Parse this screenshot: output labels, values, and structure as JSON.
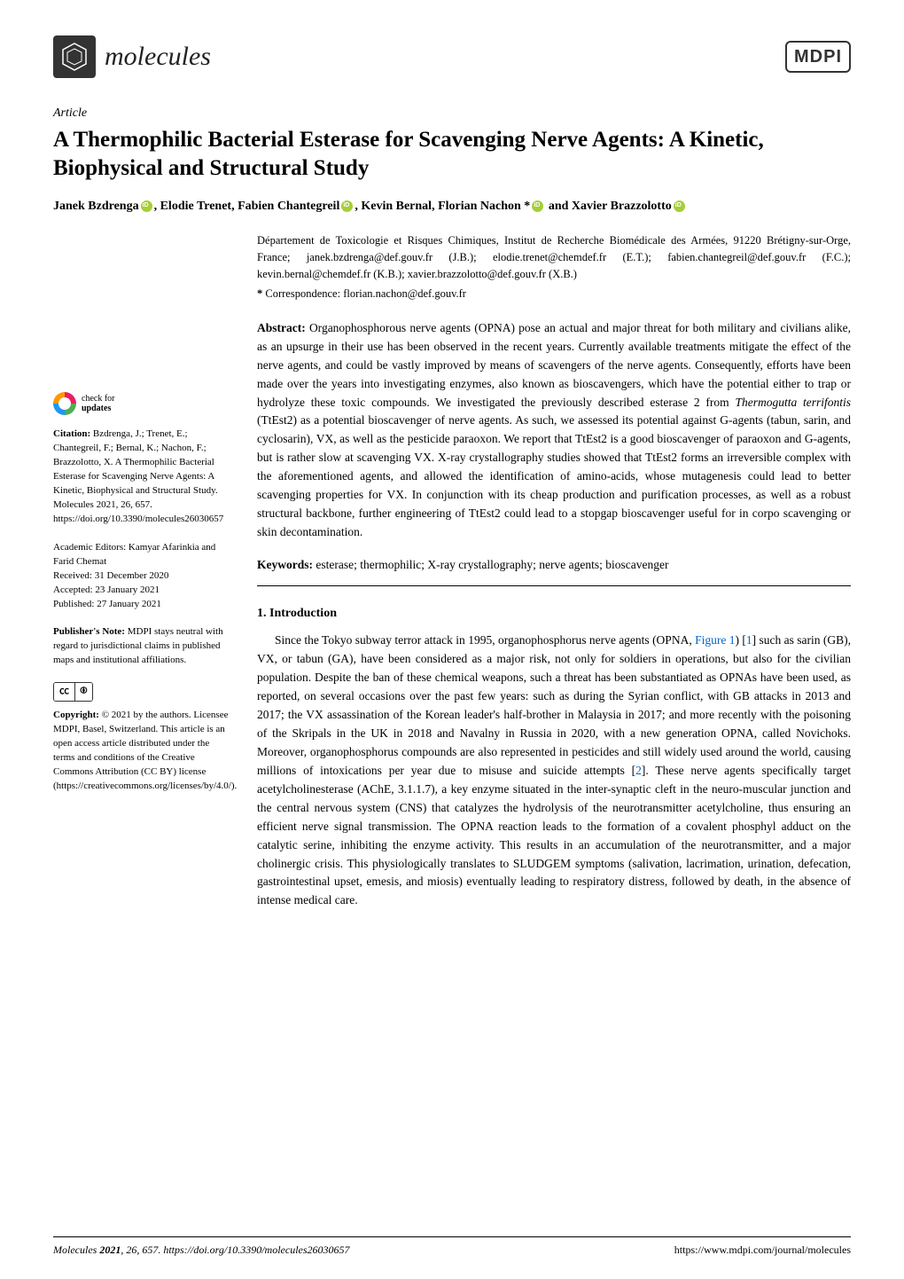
{
  "journal": {
    "name": "molecules",
    "publisher_logo": "MDPI"
  },
  "article_type": "Article",
  "title": "A Thermophilic Bacterial Esterase for Scavenging Nerve Agents: A Kinetic, Biophysical and Structural Study",
  "authors_html": "Janek Bzdrenga <ORCID>, Elodie Trenet, Fabien Chantegreil <ORCID>, Kevin Bernal, Florian Nachon *<ORCID> and Xavier Brazzolotto <ORCID>",
  "authors": [
    {
      "name": "Janek Bzdrenga",
      "orcid": true
    },
    {
      "name": "Elodie Trenet",
      "orcid": false
    },
    {
      "name": "Fabien Chantegreil",
      "orcid": true
    },
    {
      "name": "Kevin Bernal",
      "orcid": false
    },
    {
      "name": "Florian Nachon *",
      "orcid": true
    },
    {
      "name": "Xavier Brazzolotto",
      "orcid": true
    }
  ],
  "author_joiner_last": " and ",
  "affiliation": "Département de Toxicologie et Risques Chimiques, Institut de Recherche Biomédicale des Armées, 91220 Brétigny-sur-Orge, France; janek.bzdrenga@def.gouv.fr (J.B.); elodie.trenet@chemdef.fr (E.T.); fabien.chantegreil@def.gouv.fr (F.C.); kevin.bernal@chemdef.fr (K.B.); xavier.brazzolotto@def.gouv.fr (X.B.)",
  "correspondence_label": "*",
  "correspondence": "Correspondence: florian.nachon@def.gouv.fr",
  "abstract_label": "Abstract:",
  "abstract": "Organophosphorous nerve agents (OPNA) pose an actual and major threat for both military and civilians alike, as an upsurge in their use has been observed in the recent years. Currently available treatments mitigate the effect of the nerve agents, and could be vastly improved by means of scavengers of the nerve agents. Consequently, efforts have been made over the years into investigating enzymes, also known as bioscavengers, which have the potential either to trap or hydrolyze these toxic compounds. We investigated the previously described esterase 2 from Thermogutta terrifontis (TtEst2) as a potential bioscavenger of nerve agents. As such, we assessed its potential against G-agents (tabun, sarin, and cyclosarin), VX, as well as the pesticide paraoxon. We report that TtEst2 is a good bioscavenger of paraoxon and G-agents, but is rather slow at scavenging VX. X-ray crystallography studies showed that TtEst2 forms an irreversible complex with the aforementioned agents, and allowed the identification of amino-acids, whose mutagenesis could lead to better scavenging properties for VX. In conjunction with its cheap production and purification processes, as well as a robust structural backbone, further engineering of TtEst2 could lead to a stopgap bioscavenger useful for in corpo scavenging or skin decontamination.",
  "keywords_label": "Keywords:",
  "keywords": "esterase; thermophilic; X-ray crystallography; nerve agents; bioscavenger",
  "section1_heading": "1. Introduction",
  "intro_para": "Since the Tokyo subway terror attack in 1995, organophosphorus nerve agents (OPNA, Figure 1) [1] such as sarin (GB), VX, or tabun (GA), have been considered as a major risk, not only for soldiers in operations, but also for the civilian population. Despite the ban of these chemical weapons, such a threat has been substantiated as OPNAs have been used, as reported, on several occasions over the past few years: such as during the Syrian conflict, with GB attacks in 2013 and 2017; the VX assassination of the Korean leader's half-brother in Malaysia in 2017; and more recently with the poisoning of the Skripals in the UK in 2018 and Navalny in Russia in 2020, with a new generation OPNA, called Novichoks. Moreover, organophosphorus compounds are also represented in pesticides and still widely used around the world, causing millions of intoxications per year due to misuse and suicide attempts [2]. These nerve agents specifically target acetylcholinesterase (AChE, 3.1.1.7), a key enzyme situated in the inter-synaptic cleft in the neuro-muscular junction and the central nervous system (CNS) that catalyzes the hydrolysis of the neurotransmitter acetylcholine, thus ensuring an efficient nerve signal transmission. The OPNA reaction leads to the formation of a covalent phosphyl adduct on the catalytic serine, inhibiting the enzyme activity. This results in an accumulation of the neurotransmitter, and a major cholinergic crisis. This physiologically translates to SLUDGEM symptoms (salivation, lacrimation, urination, defecation, gastrointestinal upset, emesis, and miosis) eventually leading to respiratory distress, followed by death, in the absence of intense medical care.",
  "sidebar": {
    "check_updates_l1": "check for",
    "check_updates_l2": "updates",
    "citation_label": "Citation:",
    "citation": "Bzdrenga, J.; Trenet, E.; Chantegreil, F.; Bernal, K.; Nachon, F.; Brazzolotto, X. A Thermophilic Bacterial Esterase for Scavenging Nerve Agents: A Kinetic, Biophysical and Structural Study. Molecules 2021, 26, 657. https://doi.org/10.3390/molecules26030657",
    "editors_label": "Academic Editors:",
    "editors": "Kamyar Afarinkia and Farid Chemat",
    "received": "Received: 31 December 2020",
    "accepted": "Accepted: 23 January 2021",
    "published": "Published: 27 January 2021",
    "pubnote_label": "Publisher's Note:",
    "pubnote": "MDPI stays neutral with regard to jurisdictional claims in published maps and institutional affiliations.",
    "copyright_label": "Copyright:",
    "copyright": "© 2021 by the authors. Licensee MDPI, Basel, Switzerland. This article is an open access article distributed under the terms and conditions of the Creative Commons Attribution (CC BY) license (https://creativecommons.org/licenses/by/4.0/)."
  },
  "footer": {
    "left": "Molecules 2021, 26, 657. https://doi.org/10.3390/molecules26030657",
    "right": "https://www.mdpi.com/journal/molecules"
  },
  "colors": {
    "text": "#000000",
    "bg": "#ffffff",
    "link": "#0066cc",
    "orcid": "#a6ce39"
  }
}
